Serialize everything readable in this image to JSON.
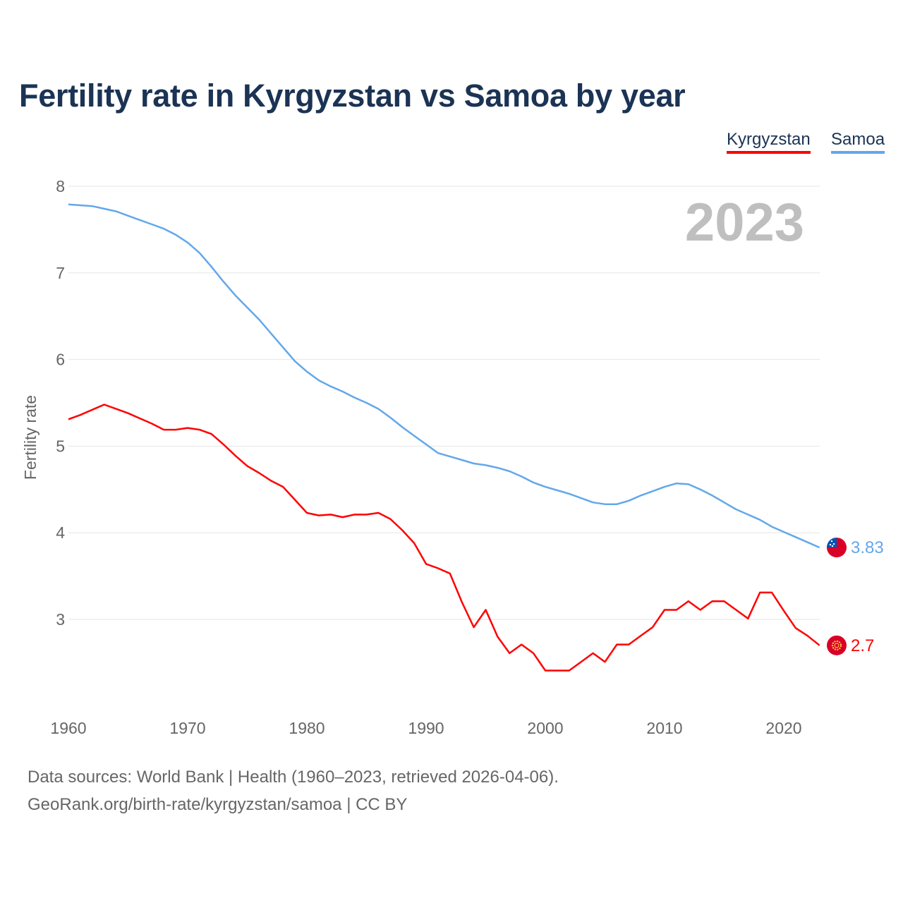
{
  "title": "Fertility rate in Kyrgyzstan vs Samoa by year",
  "year_label": "2023",
  "footer": {
    "line1": "Data sources: World Bank | Health (1960–2023, retrieved 2026-04-06).",
    "line2": "GeoRank.org/birth-rate/kyrgyzstan/samoa | CC BY"
  },
  "chart_data": {
    "type": "line",
    "title": "Fertility rate in Kyrgyzstan vs Samoa by year",
    "xlabel": "",
    "ylabel": "Fertility rate",
    "xlim": [
      1960,
      2023
    ],
    "ylim": [
      2,
      8
    ],
    "x_ticks": [
      1960,
      1970,
      1980,
      1990,
      2000,
      2010,
      2020
    ],
    "y_ticks": [
      3,
      4,
      5,
      6,
      7,
      8
    ],
    "grid": true,
    "legend_position": "top-right",
    "series": [
      {
        "name": "Kyrgyzstan",
        "color": "#ff0000",
        "end_label": "2.7",
        "flag_icon": "kyrgyzstan-flag-icon",
        "x_start": 1960,
        "values": [
          5.31,
          5.36,
          5.42,
          5.48,
          5.43,
          5.38,
          5.32,
          5.26,
          5.19,
          5.19,
          5.21,
          5.19,
          5.14,
          5.02,
          4.89,
          4.77,
          4.69,
          4.6,
          4.53,
          4.38,
          4.23,
          4.2,
          4.21,
          4.18,
          4.21,
          4.21,
          4.23,
          4.16,
          4.03,
          3.88,
          3.64,
          3.59,
          3.53,
          3.2,
          2.91,
          3.11,
          2.8,
          2.61,
          2.71,
          2.61,
          2.41,
          2.41,
          2.41,
          2.51,
          2.61,
          2.51,
          2.71,
          2.71,
          2.81,
          2.91,
          3.11,
          3.11,
          3.21,
          3.11,
          3.21,
          3.21,
          3.11,
          3.01,
          3.31,
          3.31,
          3.1,
          2.9,
          2.81,
          2.7
        ]
      },
      {
        "name": "Samoa",
        "color": "#62a8ea",
        "end_label": "3.83",
        "flag_icon": "samoa-flag-icon",
        "x_start": 1960,
        "values": [
          7.79,
          7.78,
          7.77,
          7.74,
          7.71,
          7.66,
          7.61,
          7.56,
          7.51,
          7.44,
          7.35,
          7.23,
          7.07,
          6.9,
          6.74,
          6.6,
          6.46,
          6.3,
          6.14,
          5.98,
          5.86,
          5.76,
          5.69,
          5.63,
          5.56,
          5.5,
          5.43,
          5.33,
          5.22,
          5.12,
          5.02,
          4.92,
          4.88,
          4.84,
          4.8,
          4.78,
          4.75,
          4.71,
          4.65,
          4.58,
          4.53,
          4.49,
          4.45,
          4.4,
          4.35,
          4.33,
          4.33,
          4.37,
          4.43,
          4.48,
          4.53,
          4.57,
          4.56,
          4.5,
          4.43,
          4.35,
          4.27,
          4.21,
          4.15,
          4.07,
          4.01,
          3.95,
          3.89,
          3.83
        ]
      }
    ]
  }
}
